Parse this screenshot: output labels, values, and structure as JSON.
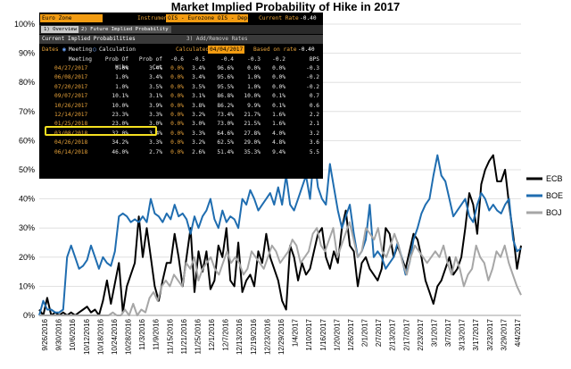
{
  "chart_data": {
    "type": "line",
    "title": "Market Implied Probability of Hike in 2017",
    "ylim": [
      0,
      100
    ],
    "yticks": [
      "0%",
      "10%",
      "20%",
      "30%",
      "40%",
      "50%",
      "60%",
      "70%",
      "80%",
      "90%",
      "100%"
    ],
    "x_tick_labels": [
      "9/26/2016",
      "9/30/2016",
      "10/6/2016",
      "10/12/2016",
      "10/18/2016",
      "10/24/2016",
      "10/28/2016",
      "11/3/2016",
      "11/9/2016",
      "11/15/2016",
      "11/21/2016",
      "11/25/2016",
      "12/1/2016",
      "12/7/2016",
      "12/13/2016",
      "12/19/2016",
      "12/23/2016",
      "12/29/2016",
      "1/4/2017",
      "1/10/2017",
      "1/16/2017",
      "1/20/2017",
      "1/26/2017",
      "2/1/2017",
      "2/7/2017",
      "2/13/2017",
      "2/17/2017",
      "2/23/2017",
      "3/1/2017",
      "3/7/2017",
      "3/13/2017",
      "3/17/2017",
      "3/23/2017",
      "3/29/2017",
      "4/4/2017"
    ],
    "legend_position": "right",
    "series": [
      {
        "name": "ECB",
        "color": "#000000",
        "values": [
          2,
          0,
          6,
          0,
          1,
          0,
          1,
          0,
          1,
          0,
          1,
          2,
          3,
          1,
          2,
          0,
          5,
          12,
          4,
          11,
          18,
          1,
          10,
          14,
          18,
          34,
          20,
          30,
          20,
          10,
          5,
          12,
          18,
          18,
          28,
          20,
          10,
          20,
          30,
          8,
          22,
          15,
          22,
          9,
          12,
          24,
          20,
          30,
          12,
          10,
          25,
          8,
          12,
          14,
          10,
          22,
          18,
          28,
          20,
          16,
          12,
          5,
          2,
          24,
          20,
          12,
          18,
          14,
          16,
          22,
          28,
          30,
          20,
          16,
          22,
          18,
          30,
          36,
          24,
          22,
          10,
          18,
          20,
          16,
          14,
          12,
          16,
          30,
          28,
          20,
          24,
          20,
          16,
          22,
          28,
          26,
          20,
          12,
          8,
          4,
          10,
          12,
          16,
          20,
          14,
          16,
          20,
          30,
          42,
          38,
          28,
          45,
          50,
          53,
          55,
          46,
          46,
          50,
          38,
          28,
          16,
          24
        ]
      },
      {
        "name": "BOE",
        "color": "#1f6db0",
        "values": [
          0,
          5,
          2,
          2,
          1,
          1,
          2,
          20,
          24,
          20,
          16,
          17,
          19,
          24,
          20,
          16,
          20,
          18,
          17,
          22,
          34,
          35,
          34,
          32,
          33,
          32,
          34,
          32,
          40,
          35,
          34,
          32,
          35,
          33,
          38,
          34,
          35,
          33,
          28,
          34,
          30,
          34,
          36,
          40,
          33,
          30,
          36,
          32,
          34,
          33,
          30,
          40,
          38,
          43,
          40,
          36,
          38,
          40,
          42,
          38,
          44,
          38,
          48,
          38,
          36,
          40,
          44,
          48,
          40,
          55,
          44,
          40,
          38,
          52,
          44,
          36,
          30,
          34,
          38,
          28,
          20,
          22,
          26,
          38,
          20,
          22,
          20,
          16,
          18,
          20,
          25,
          20,
          14,
          18,
          26,
          30,
          35,
          38,
          40,
          48,
          55,
          48,
          46,
          40,
          34,
          36,
          38,
          40,
          34,
          32,
          38,
          42,
          40,
          36,
          38,
          36,
          35,
          38,
          40,
          26,
          22,
          23
        ]
      },
      {
        "name": "BOJ",
        "color": "#a6a6a6",
        "values": [
          0,
          0,
          0,
          0,
          0,
          0,
          0,
          0,
          0,
          0,
          0,
          0,
          0,
          0,
          0,
          0,
          0,
          0,
          1,
          0,
          0,
          2,
          0,
          4,
          0,
          2,
          1,
          6,
          8,
          5,
          10,
          12,
          10,
          14,
          12,
          10,
          18,
          16,
          20,
          12,
          16,
          18,
          20,
          16,
          14,
          18,
          22,
          18,
          20,
          18,
          14,
          16,
          22,
          20,
          18,
          16,
          20,
          24,
          22,
          18,
          20,
          22,
          26,
          24,
          18,
          20,
          22,
          28,
          30,
          24,
          22,
          26,
          30,
          20,
          24,
          28,
          32,
          26,
          20,
          22,
          30,
          28,
          26,
          30,
          22,
          20,
          24,
          28,
          24,
          18,
          14,
          20,
          24,
          22,
          20,
          18,
          20,
          22,
          20,
          24,
          18,
          14,
          20,
          16,
          10,
          14,
          16,
          24,
          20,
          18,
          12,
          16,
          22,
          20,
          24,
          18,
          14,
          10,
          7
        ]
      }
    ]
  },
  "panel": {
    "zone": "Euro Zone",
    "instrument_label": "Instrument",
    "instrument_value": "OIS - Eurozone OIS - Deposit Ra",
    "current_rate_label": "Current Rate",
    "current_rate_value": "-0.40",
    "tab_overview": "1) Overview",
    "tab_future": "2) Future Implied Probability",
    "section_title": "Current Implied Probabilities",
    "add_remove": "3) Add/Remove Rates",
    "dates_label": "Dates",
    "meeting_label": "Meeting",
    "calculation_label": "Calculation",
    "calculated_label": "Calculated",
    "calculated_value": "04/04/2017",
    "based_on_label": "Based on rate",
    "based_on_value": "-0.40",
    "columns": [
      "Meeting",
      "Prob Of Hike",
      "Prob of Cut",
      "-0.6",
      "-0.5",
      "-0.4",
      "-0.3",
      "-0.2",
      "BPS"
    ],
    "rows": [
      [
        "04/27/2017",
        "0.0%",
        "3.4%",
        "0.0%",
        "3.4%",
        "96.6%",
        "0.0%",
        "0.0%",
        "-0.3"
      ],
      [
        "06/08/2017",
        "1.0%",
        "3.4%",
        "0.0%",
        "3.4%",
        "95.6%",
        "1.0%",
        "0.0%",
        "-0.2"
      ],
      [
        "07/20/2017",
        "1.0%",
        "3.5%",
        "0.0%",
        "3.5%",
        "95.5%",
        "1.0%",
        "0.0%",
        "-0.2"
      ],
      [
        "09/07/2017",
        "10.1%",
        "3.1%",
        "0.0%",
        "3.1%",
        "86.8%",
        "10.0%",
        "0.1%",
        "0.7"
      ],
      [
        "10/26/2017",
        "10.0%",
        "3.9%",
        "0.0%",
        "3.8%",
        "86.2%",
        "9.9%",
        "0.1%",
        "0.6"
      ],
      [
        "12/14/2017",
        "23.3%",
        "3.3%",
        "0.0%",
        "3.2%",
        "73.4%",
        "21.7%",
        "1.6%",
        "2.2"
      ],
      [
        "01/25/2018",
        "23.0%",
        "3.0%",
        "0.0%",
        "3.0%",
        "73.0%",
        "21.5%",
        "1.6%",
        "2.1"
      ],
      [
        "03/08/2018",
        "32.0%",
        "3.4%",
        "0.0%",
        "3.3%",
        "64.6%",
        "27.8%",
        "4.0%",
        "3.2"
      ],
      [
        "04/26/2018",
        "34.2%",
        "3.3%",
        "0.0%",
        "3.2%",
        "62.5%",
        "29.0%",
        "4.8%",
        "3.6"
      ],
      [
        "06/14/2018",
        "46.0%",
        "2.7%",
        "0.0%",
        "2.6%",
        "51.4%",
        "35.3%",
        "9.4%",
        "5.5"
      ]
    ]
  }
}
